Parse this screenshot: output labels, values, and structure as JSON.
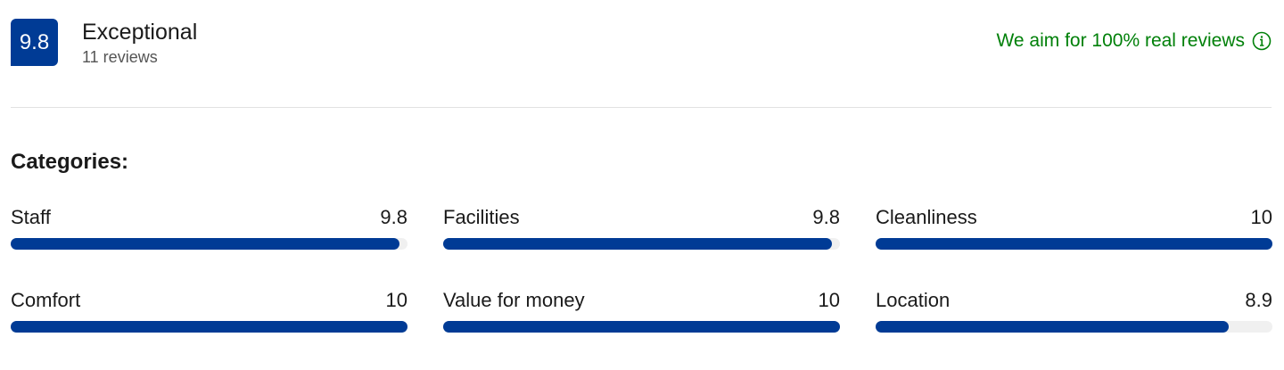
{
  "header": {
    "score": "9.8",
    "rating": "Exceptional",
    "reviews": "11 reviews",
    "notice": "We aim for 100% real reviews"
  },
  "chart_data": {
    "type": "bar",
    "title": "Categories:",
    "categories": [
      "Staff",
      "Facilities",
      "Cleanliness",
      "Comfort",
      "Value for money",
      "Location"
    ],
    "values": [
      9.8,
      9.8,
      10,
      10,
      10,
      8.9
    ],
    "xlim": [
      0,
      10
    ],
    "color": "#003b95"
  }
}
